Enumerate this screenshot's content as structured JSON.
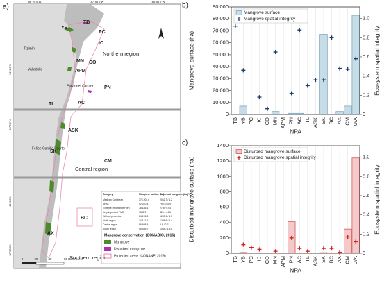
{
  "map": {
    "panel_label": "a)",
    "coords_top": [
      "88°25'0\"W",
      "87°55'0\"W",
      "86°55'0\"W"
    ],
    "coords_left": [
      "21°0'0\"N",
      "20°0'0\"N",
      "19°0'0\"N",
      "18°30'0\"N"
    ],
    "places": [
      "Tizimín",
      "Valladolid",
      "Playa del Carmen",
      "Felipe Carrillo Puerto"
    ],
    "regions": [
      "Northern region",
      "Central region",
      "Southern region"
    ],
    "npa_labels": [
      "YB",
      "TB",
      "PC",
      "IC",
      "MN",
      "CO",
      "APM",
      "PN",
      "AC",
      "TL",
      "ASK",
      "SK",
      "CM",
      "BC",
      "AX"
    ],
    "table": {
      "header": [
        "Category",
        "Mangrove surface (ha)",
        "Disturbed mangrove (ha)/%"
      ],
      "rows": [
        [
          "Mexican Caribbean",
          "176,204.6",
          "2062.7 / 1.2"
        ],
        [
          "NPAs",
          "92,010.8",
          "795.6 / 0.9"
        ],
        [
          "Extreme importance PMR",
          "76,185.6",
          "27.8 / 0.04"
        ],
        [
          "Very important PMR",
          "9385.9",
          "420.1 / 4.5"
        ],
        [
          "Without protection",
          "84,193.8",
          "1243.1 / 1.5"
        ],
        [
          "North region",
          "24,141.6",
          "1295.6 / 5.4"
        ],
        [
          "Central region",
          "96,688.9",
          "5.6 / 0.01"
        ],
        [
          "South region",
          "55,439.7",
          "1065 / 1.91"
        ]
      ]
    },
    "legend": {
      "title": "Mangrove conservation (CONABIO, 2016)",
      "items": [
        "Mangrove",
        "Disturbed mangrove",
        "Protected areas (CONANP, 2019)"
      ]
    },
    "scale": [
      "0",
      "20",
      "40",
      "80 Kilometers"
    ]
  },
  "chart_data": [
    {
      "type": "bar",
      "panel_label": "b)",
      "x_label": "NPA",
      "y_label": "Mangrove surface (ha)",
      "y2_label": "Ecosystem spatial integrity",
      "categories": [
        "TB",
        "YB",
        "PC",
        "IC",
        "CO",
        "MN",
        "APM",
        "PN",
        "AC",
        "TL",
        "ASK",
        "SK",
        "BC",
        "AX",
        "CM",
        "U/A"
      ],
      "ylim": [
        0,
        90000
      ],
      "yticks": [
        0,
        {
          "value": 10000,
          "label": "10,000"
        },
        {
          "value": 20000,
          "label": "20,000"
        },
        {
          "value": 30000,
          "label": "30,000"
        },
        {
          "value": 40000,
          "label": "40,000"
        },
        {
          "value": 50000,
          "label": "50,000"
        },
        {
          "value": 60000,
          "label": "60,000"
        },
        {
          "value": 70000,
          "label": "70,000"
        },
        {
          "value": 80000,
          "label": "80,000"
        },
        {
          "value": 90000,
          "label": "90,000"
        }
      ],
      "y2lim": [
        0,
        1.12
      ],
      "y2ticks": [
        0,
        {
          "value": 0.2,
          "label": "0.2"
        },
        {
          "value": 0.4,
          "label": "0.4"
        },
        {
          "value": 0.6,
          "label": "0.6"
        },
        {
          "value": 0.8,
          "label": "0.8"
        },
        {
          "value": 1.0,
          "label": "1.0"
        }
      ],
      "grid": true,
      "legend": "upper left",
      "series": [
        {
          "name": "Mangrove surface",
          "type": "bar",
          "color": "#c6dde8",
          "edge": "#6f9cb8",
          "values": [
            300,
            7000,
            200,
            200,
            300,
            2500,
            300,
            1000,
            1000,
            300,
            300,
            67000,
            300,
            2500,
            7000,
            83000
          ]
        },
        {
          "name": "Mangrove spatial integrity",
          "type": "plus",
          "axis": "y2",
          "color": "#1f3a6e",
          "values": [
            0.92,
            0.46,
            null,
            0.18,
            0.06,
            0.65,
            null,
            0.22,
            0.88,
            0.3,
            0.36,
            0.36,
            0.8,
            0.48,
            0.47,
            0.58
          ]
        }
      ]
    },
    {
      "type": "bar",
      "panel_label": "c)",
      "x_label": "NPA",
      "y_label": "Disturbed mangrove surface (ha)",
      "y2_label": "Ecosystem spatial integrity",
      "categories": [
        "TB",
        "YB",
        "PC",
        "IC",
        "CO",
        "MN",
        "APM",
        "PN",
        "AC",
        "TL",
        "ASK",
        "SK",
        "BC",
        "AX",
        "CM",
        "U/A"
      ],
      "ylim": [
        0,
        1400
      ],
      "yticks": [
        0,
        200,
        400,
        600,
        800,
        1000,
        1200,
        1400
      ],
      "y2lim": [
        0,
        1.12
      ],
      "y2ticks": [
        0,
        {
          "value": 0.2,
          "label": "0.2"
        },
        {
          "value": 0.4,
          "label": "0.4"
        },
        {
          "value": 0.6,
          "label": "0.6"
        },
        {
          "value": 0.8,
          "label": "0.8"
        },
        {
          "value": 1.0,
          "label": "1.0"
        }
      ],
      "grid": true,
      "legend": "upper left",
      "series": [
        {
          "name": "Disturbed mangrove surface",
          "type": "bar",
          "color": "#f3c9c9",
          "edge": "#d04545",
          "values": [
            2,
            10,
            5,
            3,
            2,
            3,
            2,
            410,
            4,
            2,
            3,
            8,
            6,
            3,
            315,
            1240
          ]
        },
        {
          "name": "Disturbed mangrove spatial integrity",
          "type": "plus",
          "axis": "y2",
          "color": "#d42020",
          "values": [
            null,
            0.09,
            0.06,
            0.04,
            null,
            0.02,
            null,
            0.16,
            0.05,
            0.02,
            null,
            0.05,
            0.05,
            0.01,
            0.17,
            0.12
          ]
        }
      ]
    }
  ]
}
